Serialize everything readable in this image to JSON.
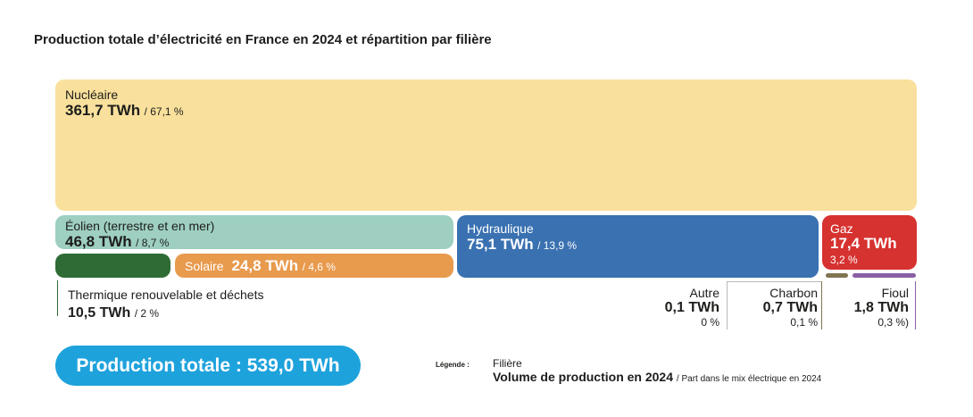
{
  "title": "Production totale d’électricité en France en 2024 et répartition par filière",
  "colors": {
    "nucleaire": "#f9e09c",
    "eolien": "#9ecfc1",
    "thermique": "#2e6b35",
    "solaire": "#e89a4d",
    "hydraulique": "#3a71b1",
    "gaz": "#d63230",
    "charbon": "#7f7550",
    "fioul": "#8a5fa6",
    "total": "#1ea2dc"
  },
  "chart_data": {
    "type": "treemap",
    "title": "Production totale d’électricité en France en 2024 et répartition par filière",
    "unit": "TWh",
    "total": {
      "label": "Production totale : 539,0 TWh",
      "value": 539.0
    },
    "items": [
      {
        "name": "Nucléaire",
        "value": 361.7,
        "value_text": "361,7 TWh",
        "share": 67.1,
        "share_text": "/ 67,1 %"
      },
      {
        "name": "Éolien (terrestre et en mer)",
        "value": 46.8,
        "value_text": "46,8 TWh",
        "share": 8.7,
        "share_text": "/ 8,7 %"
      },
      {
        "name": "Hydraulique",
        "value": 75.1,
        "value_text": "75,1 TWh",
        "share": 13.9,
        "share_text": "/ 13,9 %"
      },
      {
        "name": "Gaz",
        "value": 17.4,
        "value_text": "17,4 TWh",
        "share": 3.2,
        "share_text": "3,2 %"
      },
      {
        "name": "Solaire",
        "value": 24.8,
        "value_text": "24,8 TWh",
        "share": 4.6,
        "share_text": "/ 4,6 %"
      },
      {
        "name": "Thermique renouvelable et déchets",
        "value": 10.5,
        "value_text": "10,5 TWh",
        "share": 2,
        "share_text": "/ 2 %"
      },
      {
        "name": "Autre",
        "value": 0.1,
        "value_text": "0,1 TWh",
        "share": 0,
        "share_text": "0 %"
      },
      {
        "name": "Charbon",
        "value": 0.7,
        "value_text": "0,7 TWh",
        "share": 0.1,
        "share_text": "0,1 %"
      },
      {
        "name": "Fioul",
        "value": 1.8,
        "value_text": "1,8 TWh",
        "share": 0.3,
        "share_text": "0,3 %)"
      }
    ]
  },
  "legend": {
    "label": "Légende :",
    "filiere": "Filière",
    "volume": "Volume de production en 2024",
    "part": "/ Part dans le mix électrique en 2024"
  }
}
